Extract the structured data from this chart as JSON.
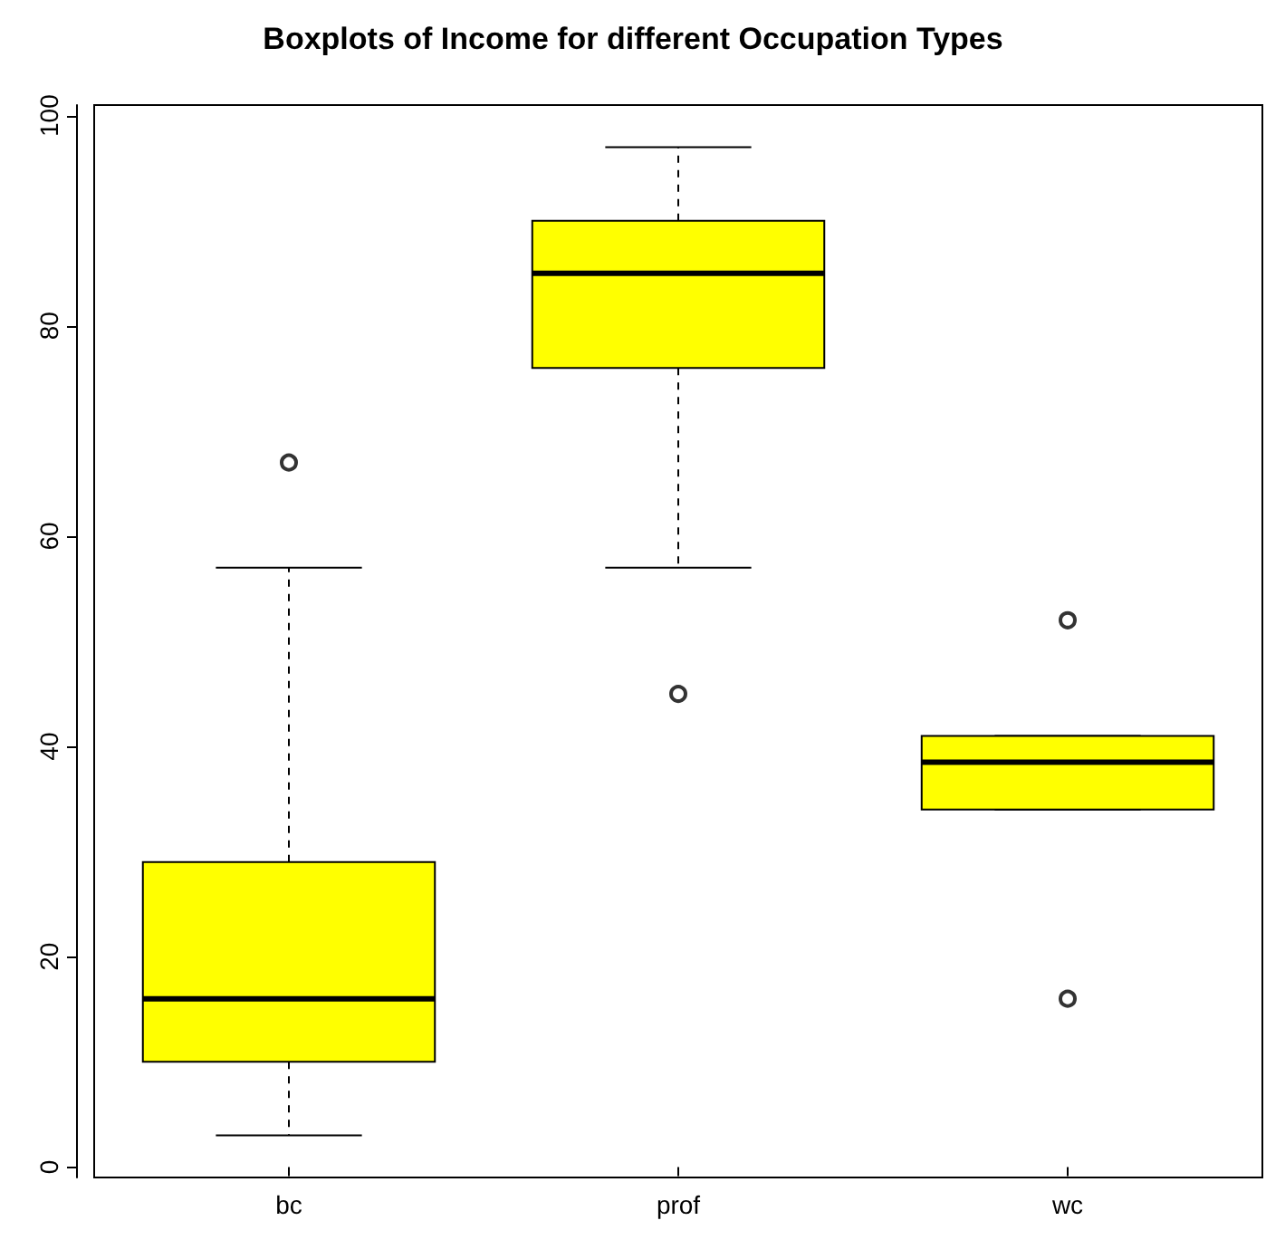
{
  "chart_data": {
    "type": "box",
    "title": "Boxplots of Income for different Occupation Types",
    "categories": [
      "bc",
      "prof",
      "wc"
    ],
    "color": "#ffff00",
    "boxes": [
      {
        "low": 3,
        "q1": 10,
        "median": 16,
        "q3": 29,
        "high": 57,
        "outliers": [
          67
        ]
      },
      {
        "low": 57,
        "q1": 76,
        "median": 85,
        "q3": 90,
        "high": 97,
        "outliers": [
          45
        ]
      },
      {
        "low": 34,
        "q1": 34,
        "median": 38.5,
        "q3": 41,
        "high": 41,
        "outliers": [
          16,
          52
        ]
      }
    ],
    "ylim": [
      -1,
      101
    ],
    "yticks": [
      0,
      20,
      40,
      60,
      80,
      100
    ],
    "grid": false,
    "marker": "circle"
  }
}
